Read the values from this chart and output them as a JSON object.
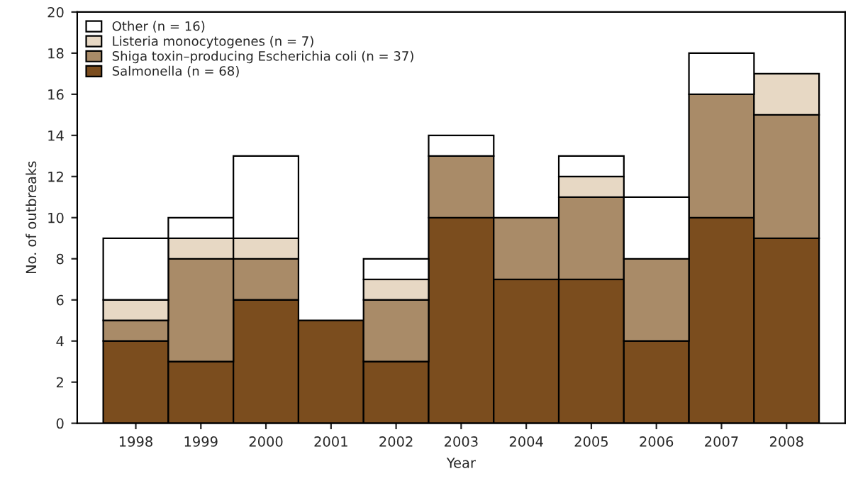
{
  "chart_data": {
    "type": "bar",
    "stacked": true,
    "xlabel": "Year",
    "ylabel": "No. of outbreaks",
    "categories": [
      "1998",
      "1999",
      "2000",
      "2001",
      "2002",
      "2003",
      "2004",
      "2005",
      "2006",
      "2007",
      "2008"
    ],
    "series": [
      {
        "name": "Salmonella (n = 68)",
        "color": "#7b4d1e",
        "values": [
          4,
          3,
          6,
          5,
          3,
          10,
          7,
          7,
          4,
          10,
          9
        ]
      },
      {
        "name": "Shiga toxin–producing Escherichia coli (n = 37)",
        "color": "#a98b68",
        "values": [
          1,
          5,
          2,
          0,
          3,
          3,
          3,
          4,
          4,
          6,
          6
        ]
      },
      {
        "name": "Listeria monocytogenes (n = 7)",
        "color": "#e7d8c4",
        "values": [
          1,
          1,
          1,
          0,
          1,
          0,
          0,
          1,
          0,
          0,
          2
        ]
      },
      {
        "name": "Other (n = 16)",
        "color": "#ffffff",
        "values": [
          3,
          1,
          4,
          0,
          1,
          1,
          0,
          1,
          3,
          2,
          0
        ]
      }
    ],
    "ylim": [
      0,
      20
    ],
    "yticks": [
      0,
      2,
      4,
      6,
      8,
      10,
      12,
      14,
      16,
      18,
      20
    ],
    "grid": false,
    "legend": "top left"
  }
}
